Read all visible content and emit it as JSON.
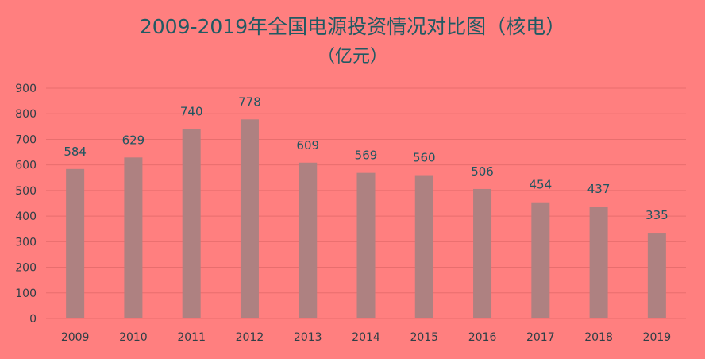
{
  "chart_data": {
    "type": "bar",
    "title": "2009-2019年全国电源投资情况对比图（核电）",
    "subtitle": "（亿元）",
    "categories": [
      "2009",
      "2010",
      "2011",
      "2012",
      "2013",
      "2014",
      "2015",
      "2016",
      "2017",
      "2018",
      "2019"
    ],
    "values": [
      584,
      629,
      740,
      778,
      609,
      569,
      560,
      506,
      454,
      437,
      335
    ],
    "xlabel": "",
    "ylabel": "",
    "ylim": [
      0,
      900
    ],
    "yticks": [
      "0",
      "100",
      "200",
      "300",
      "400",
      "500",
      "600",
      "700",
      "800",
      "900"
    ],
    "grid": true,
    "legend": "none",
    "colors": {
      "background": "#ff7f7f",
      "bar": "#ae8181",
      "grid": "#e86e6e",
      "title": "#215a63"
    }
  }
}
